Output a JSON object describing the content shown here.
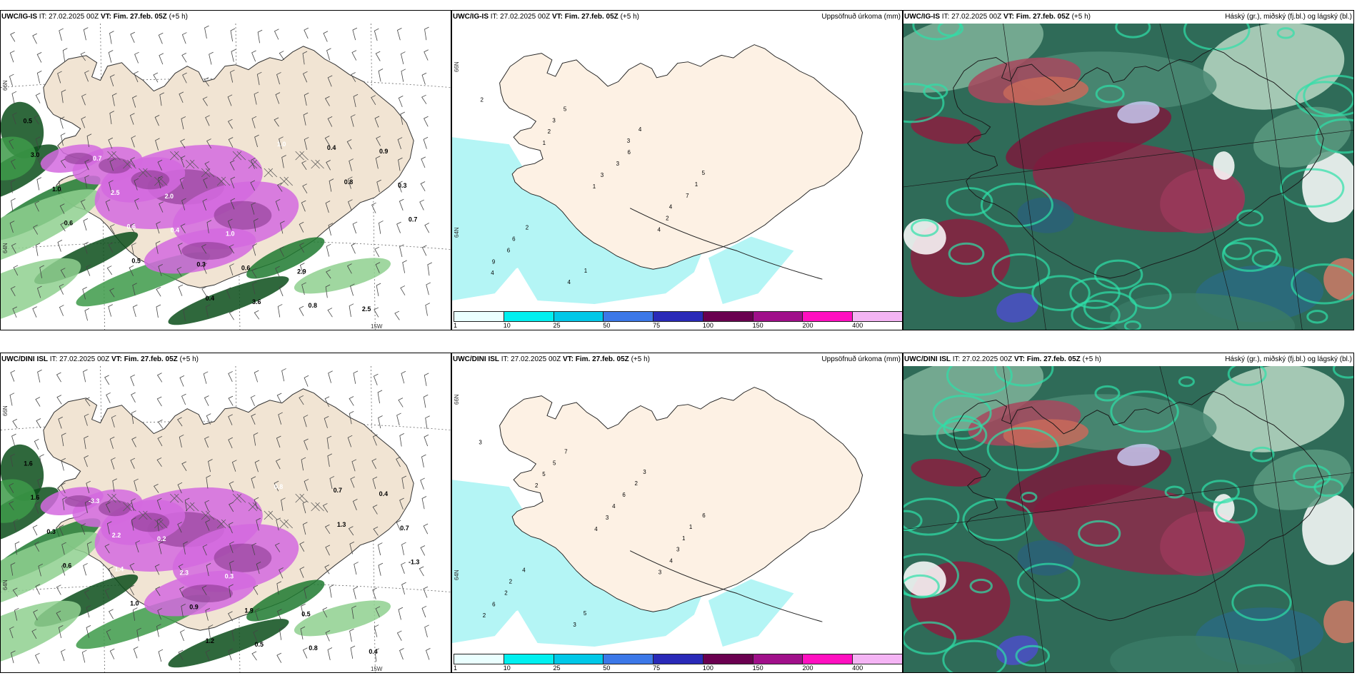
{
  "panels": [
    {
      "id": "top-left",
      "model": "UWC/IG-IS",
      "it": "IT: 27.02.2025 00Z",
      "vt_label": "VT: Fim. 27.feb. 05Z",
      "lead": "(+5 h)",
      "right_title": "",
      "type": "wind"
    },
    {
      "id": "top-mid",
      "model": "UWC/IG-IS",
      "it": "IT: 27.02.2025 00Z",
      "vt_label": "VT: Fim. 27.feb. 05Z",
      "lead": "(+5 h)",
      "right_title": "Uppsöfnuð úrkoma (mm)",
      "type": "precip"
    },
    {
      "id": "top-right",
      "model": "UWC/IG-IS",
      "it": "IT: 27.02.2025 00Z",
      "vt_label": "VT: Fim. 27.feb. 05Z",
      "lead": "(+5 h)",
      "right_title": "Háský (gr.), miðský (fj.bl.) og lágský (bl.)",
      "type": "cloud"
    },
    {
      "id": "bottom-left",
      "model": "UWC/DINI ISL",
      "it": "IT: 27.02.2025 00Z",
      "vt_label": "VT: Fim. 27.feb. 05Z",
      "lead": "(+5 h)",
      "right_title": "",
      "type": "wind"
    },
    {
      "id": "bottom-mid",
      "model": "UWC/DINI ISL",
      "it": "IT: 27.02.2025 00Z",
      "vt_label": "VT: Fim. 27.feb. 05Z",
      "lead": "(+5 h)",
      "right_title": "Uppsöfnuð úrkoma (mm)",
      "type": "precip"
    },
    {
      "id": "bottom-right",
      "model": "UWC/DINI ISL",
      "it": "IT: 27.02.2025 00Z",
      "vt_label": "VT: Fim. 27.feb. 05Z",
      "lead": "(+5 h)",
      "right_title": "Háský (gr.), miðský (fj.bl.) og lágský (bl.)",
      "type": "cloud"
    }
  ],
  "colorbar": {
    "ticks": [
      "1",
      "10",
      "25",
      "50",
      "75",
      "100",
      "150",
      "200",
      "400"
    ],
    "colors": [
      "#eaffff",
      "#00f0f0",
      "#00c8e8",
      "#3c78e8",
      "#2a2ab8",
      "#6a0050",
      "#a0108a",
      "#ff10c0",
      "#f4b4f4"
    ]
  },
  "axis_labels": {
    "lat_top": "66N",
    "lat_mid": "64N",
    "lon": "15W"
  },
  "wind_labels_top": [
    "0.5",
    "0.7",
    "2.0",
    "1.0",
    "2.9",
    "2.5",
    "3.0",
    "2.5",
    "0.4",
    "0.6",
    "0.8",
    "0.9",
    "1.0",
    "0.6",
    "0.3",
    "3.6",
    "0.4",
    "0.3",
    "0.6",
    "0.5",
    "0.4",
    "1.0",
    "0.8",
    "0.7"
  ],
  "wind_labels_bottom": [
    "1.6",
    "-3.3",
    "0.2",
    "0.3",
    "0.5",
    "0.4",
    "1.6",
    "2.2",
    "2.3",
    "1.9",
    "0.8",
    "0.4",
    "0.3",
    "1.4",
    "0.9",
    "0.5",
    "0.7",
    "0.7",
    "0.6",
    "1.0",
    "1.2",
    "0.8",
    "1.3",
    "-1.3"
  ],
  "precip_labels_top": [
    "2",
    "1",
    "1",
    "4",
    "4",
    "2",
    "3",
    "2",
    "9",
    "3",
    "3",
    "4",
    "6",
    "5",
    "6",
    "7",
    "6",
    "4",
    "3",
    "1",
    "2",
    "1",
    "4",
    "5"
  ],
  "precip_labels_bottom": [
    "3",
    "2",
    "4",
    "3",
    "2",
    "5",
    "3",
    "4",
    "6",
    "5",
    "4",
    "3",
    "2",
    "7",
    "6",
    "1",
    "2",
    "3",
    "2",
    "1",
    "4",
    "5",
    "3",
    "6"
  ]
}
